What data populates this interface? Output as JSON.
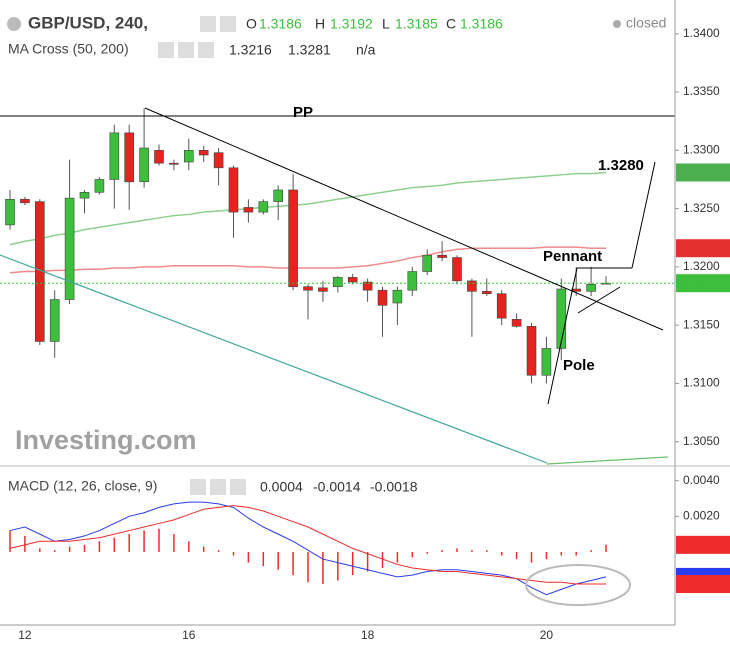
{
  "chart_data": [
    {
      "type": "candlestick",
      "title": "GBP/USD, 240,",
      "status": "closed",
      "ohlc_labels": [
        "O",
        "H",
        "L",
        "C"
      ],
      "categories": [
        null,
        "12",
        null,
        null,
        null,
        null,
        null,
        null,
        null,
        null,
        null,
        null,
        "16",
        null,
        null,
        null,
        null,
        null,
        null,
        null,
        null,
        null,
        null,
        null,
        "18",
        null,
        null,
        null,
        null,
        null,
        null,
        null,
        null,
        null,
        null,
        null,
        "20",
        null,
        null,
        null,
        null
      ],
      "open": [
        1.3236,
        1.3258,
        1.3256,
        1.3136,
        1.3172,
        1.3259,
        1.3264,
        1.3275,
        1.3315,
        1.3273,
        1.33,
        1.3289,
        1.329,
        1.33,
        1.3298,
        1.3285,
        1.3251,
        1.3247,
        1.3256,
        1.3266,
        1.3183,
        1.3182,
        1.3183,
        1.3191,
        1.3187,
        1.318,
        1.3169,
        1.318,
        1.3196,
        1.321,
        1.3208,
        1.3188,
        1.3179,
        1.3177,
        1.3155,
        1.3149,
        1.3107,
        1.313,
        1.3181,
        1.3179,
        1.3186
      ],
      "high": [
        1.3266,
        1.326,
        1.3258,
        1.318,
        1.3292,
        1.3266,
        1.3277,
        1.3322,
        1.3322,
        1.3336,
        1.3305,
        1.3292,
        1.331,
        1.3304,
        1.3302,
        1.3287,
        1.3258,
        1.3258,
        1.327,
        1.328,
        1.3185,
        1.3188,
        1.3192,
        1.3194,
        1.319,
        1.3183,
        1.3183,
        1.32,
        1.3215,
        1.3222,
        1.321,
        1.319,
        1.319,
        1.318,
        1.316,
        1.3152,
        1.314,
        1.319,
        1.32,
        1.32,
        1.3192
      ],
      "low": [
        1.3232,
        1.3253,
        1.3133,
        1.3122,
        1.3168,
        1.3246,
        1.3262,
        1.325,
        1.3249,
        1.3268,
        1.3287,
        1.3283,
        1.3283,
        1.329,
        1.327,
        1.3225,
        1.3238,
        1.3245,
        1.324,
        1.318,
        1.3155,
        1.317,
        1.3178,
        1.3185,
        1.317,
        1.314,
        1.315,
        1.3175,
        1.3193,
        1.3205,
        1.3185,
        1.314,
        1.3175,
        1.315,
        1.3148,
        1.31,
        1.31,
        1.312,
        1.3175,
        1.3175,
        1.3185
      ],
      "close": [
        1.3258,
        1.3255,
        1.3136,
        1.3172,
        1.3259,
        1.3264,
        1.3275,
        1.3315,
        1.3273,
        1.3302,
        1.3289,
        1.3288,
        1.33,
        1.3296,
        1.3285,
        1.3247,
        1.3247,
        1.3256,
        1.3266,
        1.3183,
        1.318,
        1.3179,
        1.3191,
        1.3187,
        1.318,
        1.3167,
        1.318,
        1.3196,
        1.321,
        1.3208,
        1.3188,
        1.3179,
        1.3177,
        1.3156,
        1.3149,
        1.3107,
        1.313,
        1.3181,
        1.3179,
        1.3185,
        1.3186
      ],
      "up_color": "#3dbf3d",
      "down_color": "#e5231f",
      "ylim": [
        1.303,
        1.3429
      ],
      "yticks": [
        {
          "value": 1.34,
          "label": "1.3400"
        },
        {
          "value": 1.335,
          "label": "1.3350"
        },
        {
          "value": 1.33,
          "label": "1.3300"
        },
        {
          "value": 1.325,
          "label": "1.3250"
        },
        {
          "value": 1.32,
          "label": "1.3200"
        },
        {
          "value": 1.315,
          "label": "1.3150"
        },
        {
          "value": 1.31,
          "label": "1.3100"
        },
        {
          "value": 1.305,
          "label": "1.3050"
        }
      ],
      "overlay_title": "MA Cross (50, 200)",
      "overlay_extra": "n/a",
      "overlays": [
        {
          "color": "#f08a8a",
          "values": [
            1.3195,
            1.3196,
            1.3196,
            1.3197,
            1.3197,
            1.3198,
            1.3198,
            1.3199,
            1.3199,
            1.32,
            1.32,
            1.3201,
            1.3201,
            1.3201,
            1.3201,
            1.3201,
            1.32,
            1.32,
            1.3199,
            1.3199,
            1.3199,
            1.3199,
            1.3199,
            1.32,
            1.3201,
            1.3203,
            1.3205,
            1.3208,
            1.321,
            1.3213,
            1.3215,
            1.3216,
            1.3216,
            1.3216,
            1.3216,
            1.3216,
            1.3217,
            1.3217,
            1.3217,
            1.3216,
            1.3216
          ]
        },
        {
          "color": "#8fcf8f",
          "values": [
            1.3219,
            1.3222,
            1.3224,
            1.3227,
            1.3229,
            1.3232,
            1.3234,
            1.3236,
            1.3238,
            1.324,
            1.3242,
            1.3244,
            1.3245,
            1.3247,
            1.3248,
            1.3249,
            1.325,
            1.3251,
            1.3252,
            1.3253,
            1.3254,
            1.3256,
            1.3258,
            1.326,
            1.3262,
            1.3264,
            1.3266,
            1.3268,
            1.3269,
            1.327,
            1.3272,
            1.3273,
            1.3274,
            1.3275,
            1.3276,
            1.3277,
            1.3278,
            1.3279,
            1.328,
            1.328,
            1.3281
          ]
        }
      ],
      "tag_colors": [
        "#e5312e",
        "#4caf50"
      ],
      "annotations": [
        "PP",
        "1.3280",
        "Pennant",
        "Pole"
      ],
      "watermark": "Investing.com"
    },
    {
      "type": "macd",
      "title": "MACD (12, 26, close, 9)",
      "ylim": [
        -0.0041,
        0.0046
      ],
      "yticks": [
        {
          "value": 0.004,
          "label": "0.0040"
        },
        {
          "value": 0.002,
          "label": "0.0020"
        }
      ],
      "histogram": {
        "color": "#ef2b2b",
        "values": [
          0.0012,
          0.0009,
          0.0002,
          0.0001,
          0.0003,
          0.0004,
          0.0006,
          0.0008,
          0.001,
          0.0012,
          0.0013,
          0.001,
          0.0006,
          0.0003,
          0.0001,
          -0.0002,
          -0.0006,
          -0.0008,
          -0.001,
          -0.0013,
          -0.0017,
          -0.0018,
          -0.0016,
          -0.0013,
          -0.0011,
          -0.0009,
          -0.0006,
          -0.0003,
          -0.0001,
          0.0001,
          0.0002,
          0.0001,
          0.0001,
          -0.0002,
          -0.0004,
          -0.0006,
          -0.0004,
          -0.0002,
          -0.0002,
          0.0001,
          0.0004
        ]
      },
      "series": [
        {
          "color": "#2a3cf0",
          "values": [
            0.0012,
            0.0014,
            0.001,
            0.0006,
            0.0007,
            0.0009,
            0.0012,
            0.0016,
            0.002,
            0.0022,
            0.0025,
            0.0027,
            0.0028,
            0.0028,
            0.0027,
            0.0025,
            0.0019,
            0.0014,
            0.001,
            0.0006,
            0.0001,
            -0.0004,
            -0.0006,
            -0.0008,
            -0.001,
            -0.0012,
            -0.0014,
            -0.0013,
            -0.0011,
            -0.001,
            -0.001,
            -0.0011,
            -0.0012,
            -0.0013,
            -0.0015,
            -0.002,
            -0.0024,
            -0.0021,
            -0.0018,
            -0.0016,
            -0.0014
          ]
        },
        {
          "color": "#ef2b2b",
          "values": [
            0.0002,
            0.0004,
            0.0006,
            0.0006,
            0.0006,
            0.0007,
            0.0008,
            0.001,
            0.0012,
            0.0014,
            0.0016,
            0.0018,
            0.0021,
            0.0024,
            0.0025,
            0.0026,
            0.0025,
            0.0023,
            0.002,
            0.0017,
            0.0014,
            0.001,
            0.0006,
            0.0002,
            -0.0001,
            -0.0004,
            -0.0007,
            -0.0009,
            -0.001,
            -0.0011,
            -0.0011,
            -0.0012,
            -0.0013,
            -0.0014,
            -0.0015,
            -0.0016,
            -0.0017,
            -0.0017,
            -0.0018,
            -0.0018,
            -0.0018
          ]
        }
      ]
    }
  ]
}
